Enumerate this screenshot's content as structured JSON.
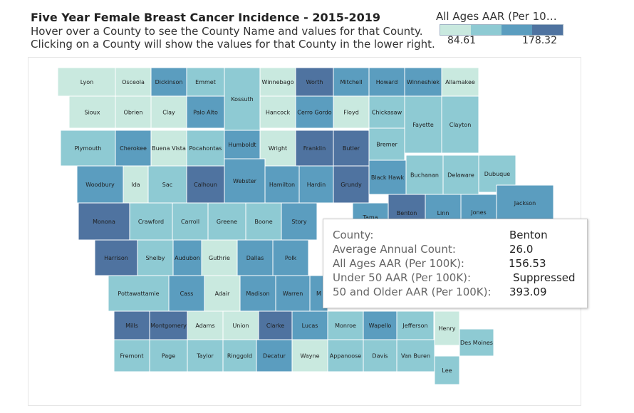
{
  "title": "Five Year Female Breast Cancer Incidence - 2015-2019",
  "subtitle_1": "Hover over a County to see the County Name and values for that County.",
  "subtitle_2": "Clicking on a County will show the values for that County in the lower right.",
  "legend": {
    "title": "All Ages AAR (Per 10…",
    "min": "84.61",
    "max": "178.32",
    "colors": [
      "#c9e9df",
      "#8ecad3",
      "#5b9dbf",
      "#4f73a0"
    ]
  },
  "tooltip": {
    "county_label": "County:",
    "county_value": "Benton",
    "count_label": "Average Annual Count:",
    "count_value": "26.0",
    "all_ages_label": "All Ages AAR (Per 100K):",
    "all_ages_value": "156.53",
    "under50_label": "Under 50 AAR (Per 100K):",
    "under50_value": "Suppressed",
    "over50_label": "50 and Older AAR (Per 100K):",
    "over50_value": "393.09"
  },
  "counties": [
    {
      "name": "Lyon",
      "shade": 0
    },
    {
      "name": "Osceola",
      "shade": 0
    },
    {
      "name": "Dickinson",
      "shade": 2
    },
    {
      "name": "Emmet",
      "shade": 1
    },
    {
      "name": "Kossuth",
      "shade": 1
    },
    {
      "name": "Winnebago",
      "shade": 0
    },
    {
      "name": "Worth",
      "shade": 3
    },
    {
      "name": "Mitchell",
      "shade": 2
    },
    {
      "name": "Howard",
      "shade": 2
    },
    {
      "name": "Winneshiek",
      "shade": 2
    },
    {
      "name": "Allamakee",
      "shade": 0
    },
    {
      "name": "Sioux",
      "shade": 0
    },
    {
      "name": "Obrien",
      "shade": 0
    },
    {
      "name": "Clay",
      "shade": 0
    },
    {
      "name": "Palo Alto",
      "shade": 2
    },
    {
      "name": "Hancock",
      "shade": 0
    },
    {
      "name": "Cerro Gordo",
      "shade": 2
    },
    {
      "name": "Floyd",
      "shade": 0
    },
    {
      "name": "Chickasaw",
      "shade": 1
    },
    {
      "name": "Fayette",
      "shade": 1
    },
    {
      "name": "Clayton",
      "shade": 1
    },
    {
      "name": "Plymouth",
      "shade": 1
    },
    {
      "name": "Cherokee",
      "shade": 2
    },
    {
      "name": "Buena Vista",
      "shade": 0
    },
    {
      "name": "Pocahontas",
      "shade": 1
    },
    {
      "name": "Humboldt",
      "shade": 2
    },
    {
      "name": "Wright",
      "shade": 0
    },
    {
      "name": "Franklin",
      "shade": 3
    },
    {
      "name": "Butler",
      "shade": 3
    },
    {
      "name": "Bremer",
      "shade": 1
    },
    {
      "name": "Black Hawk",
      "shade": 2
    },
    {
      "name": "Buchanan",
      "shade": 1
    },
    {
      "name": "Delaware",
      "shade": 1
    },
    {
      "name": "Dubuque",
      "shade": 1
    },
    {
      "name": "Woodbury",
      "shade": 2
    },
    {
      "name": "Ida",
      "shade": 0
    },
    {
      "name": "Sac",
      "shade": 1
    },
    {
      "name": "Calhoun",
      "shade": 3
    },
    {
      "name": "Webster",
      "shade": 2
    },
    {
      "name": "Hamilton",
      "shade": 2
    },
    {
      "name": "Hardin",
      "shade": 2
    },
    {
      "name": "Grundy",
      "shade": 3
    },
    {
      "name": "Tama",
      "shade": 2
    },
    {
      "name": "Benton",
      "shade": 3
    },
    {
      "name": "Linn",
      "shade": 2
    },
    {
      "name": "Jones",
      "shade": 2
    },
    {
      "name": "Jackson",
      "shade": 2
    },
    {
      "name": "Monona",
      "shade": 3
    },
    {
      "name": "Crawford",
      "shade": 1
    },
    {
      "name": "Carroll",
      "shade": 1
    },
    {
      "name": "Greene",
      "shade": 1
    },
    {
      "name": "Boone",
      "shade": 1
    },
    {
      "name": "Story",
      "shade": 2
    },
    {
      "name": "Harrison",
      "shade": 3
    },
    {
      "name": "Shelby",
      "shade": 1
    },
    {
      "name": "Audubon",
      "shade": 2
    },
    {
      "name": "Guthrie",
      "shade": 0
    },
    {
      "name": "Dallas",
      "shade": 2
    },
    {
      "name": "Polk",
      "shade": 2
    },
    {
      "name": "Pottawattamie",
      "shade": 1
    },
    {
      "name": "Cass",
      "shade": 2
    },
    {
      "name": "Adair",
      "shade": 0
    },
    {
      "name": "Madison",
      "shade": 2
    },
    {
      "name": "Warren",
      "shade": 2
    },
    {
      "name": "M",
      "shade": 2
    },
    {
      "name": "Mills",
      "shade": 3
    },
    {
      "name": "Montgomery",
      "shade": 3
    },
    {
      "name": "Adams",
      "shade": 0
    },
    {
      "name": "Union",
      "shade": 0
    },
    {
      "name": "Clarke",
      "shade": 3
    },
    {
      "name": "Lucas",
      "shade": 2
    },
    {
      "name": "Monroe",
      "shade": 1
    },
    {
      "name": "Wapello",
      "shade": 2
    },
    {
      "name": "Jefferson",
      "shade": 1
    },
    {
      "name": "Henry",
      "shade": 0
    },
    {
      "name": "Des Moines",
      "shade": 1
    },
    {
      "name": "Fremont",
      "shade": 1
    },
    {
      "name": "Page",
      "shade": 1
    },
    {
      "name": "Taylor",
      "shade": 1
    },
    {
      "name": "Ringgold",
      "shade": 1
    },
    {
      "name": "Decatur",
      "shade": 2
    },
    {
      "name": "Wayne",
      "shade": 0
    },
    {
      "name": "Appanoose",
      "shade": 1
    },
    {
      "name": "Davis",
      "shade": 1
    },
    {
      "name": "Van Buren",
      "shade": 1
    },
    {
      "name": "Lee",
      "shade": 1
    }
  ]
}
